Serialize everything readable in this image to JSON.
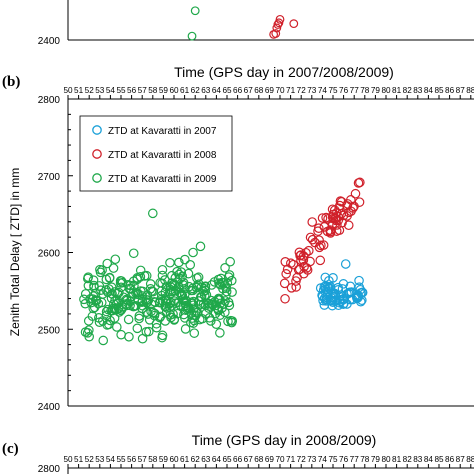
{
  "chart_data": [
    {
      "type": "scatter",
      "partial": "bottom of panel (a), cropped at top",
      "ytick_labels": [
        "2400"
      ],
      "series": [
        {
          "name": "",
          "color": "#1fa84a",
          "points": [
            [
              61.7,
              2409
            ],
            [
              62.0,
              2468
            ]
          ]
        },
        {
          "name": "",
          "color": "#d0202a",
          "points": [
            [
              69.4,
              2413
            ],
            [
              69.6,
              2415
            ],
            [
              69.7,
              2428
            ],
            [
              69.8,
              2436
            ],
            [
              69.9,
              2440
            ],
            [
              70.0,
              2448
            ],
            [
              71.3,
              2438
            ]
          ]
        }
      ]
    },
    {
      "type": "scatter",
      "panel_label": "(b)",
      "title": "Time (GPS day in 2007/2008/2009)",
      "ylabel": "Zenith Total Delay [ ZTD] in mm",
      "xlim": [
        50,
        88
      ],
      "ylim": [
        2400,
        2800
      ],
      "xtick_labels": [
        "50",
        "51",
        "52",
        "53",
        "54",
        "55",
        "56",
        "57",
        "58",
        "59",
        "60",
        "61",
        "62",
        "63",
        "64",
        "65",
        "66",
        "67",
        "68",
        "69",
        "70",
        "71",
        "72",
        "73",
        "74",
        "75",
        "76",
        "77",
        "78",
        "79",
        "80",
        "81",
        "82",
        "83",
        "84",
        "85",
        "86",
        "87",
        "88"
      ],
      "ytick_labels": [
        "2400",
        "2500",
        "2600",
        "2700",
        "2800"
      ],
      "legend_position": "top-left",
      "series": [
        {
          "name": "ZTD at Kavaratti in 2007",
          "color": "#1aa0d8"
        },
        {
          "name": "ZTD at Kavaratti in 2008",
          "color": "#d0202a"
        },
        {
          "name": "ZTD at Kavaratti in 2009",
          "color": "#1fa84a"
        }
      ]
    },
    {
      "type": "scatter",
      "partial": "top of panel (c), cropped at bottom",
      "panel_label": "(c)",
      "title": "Time (GPS day in 2008/2009)",
      "xtick_labels": [
        "50",
        "51",
        "52",
        "53",
        "54",
        "55",
        "56",
        "57",
        "58",
        "59",
        "60",
        "61",
        "62",
        "63",
        "64",
        "65",
        "66",
        "67",
        "68",
        "69",
        "70",
        "71",
        "72",
        "73",
        "74",
        "75",
        "76",
        "77",
        "78",
        "79",
        "80",
        "81",
        "82",
        "83",
        "84",
        "85",
        "86",
        "87",
        "88"
      ],
      "ytick_labels": [
        "2800"
      ]
    }
  ]
}
